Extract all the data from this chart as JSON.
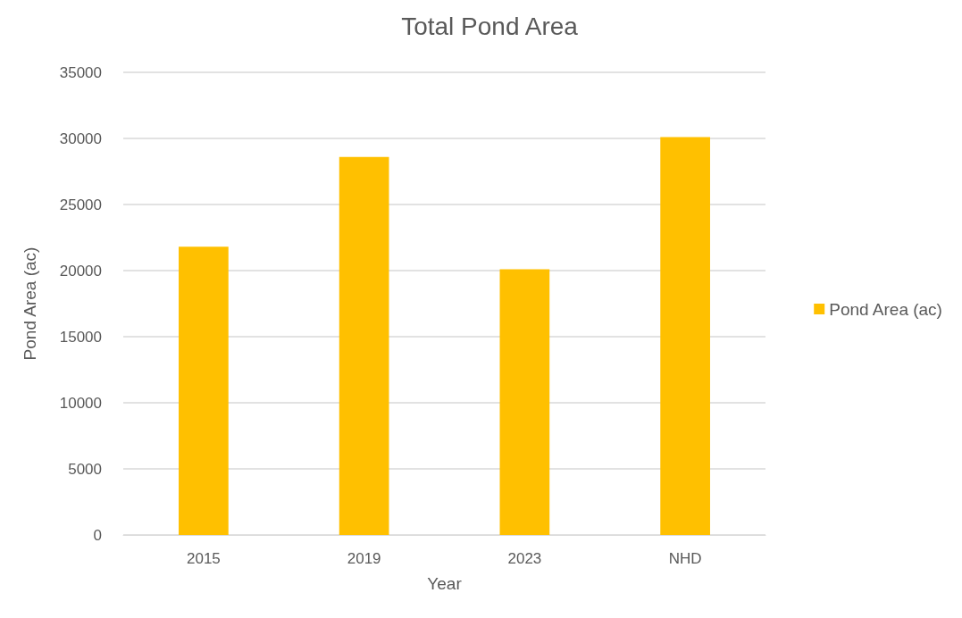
{
  "chart_data": {
    "type": "bar",
    "title": "Total Pond Area",
    "xlabel": "Year",
    "ylabel": "Pond Area (ac)",
    "categories": [
      "2015",
      "2019",
      "2023",
      "NHD"
    ],
    "series": [
      {
        "name": "Pond Area (ac)",
        "color": "#ffc000",
        "values": [
          21800,
          28600,
          20100,
          30100
        ]
      }
    ],
    "ylim": [
      0,
      35000
    ],
    "yticks": [
      0,
      5000,
      10000,
      15000,
      20000,
      25000,
      30000,
      35000
    ],
    "grid": "y",
    "legend": "right"
  }
}
